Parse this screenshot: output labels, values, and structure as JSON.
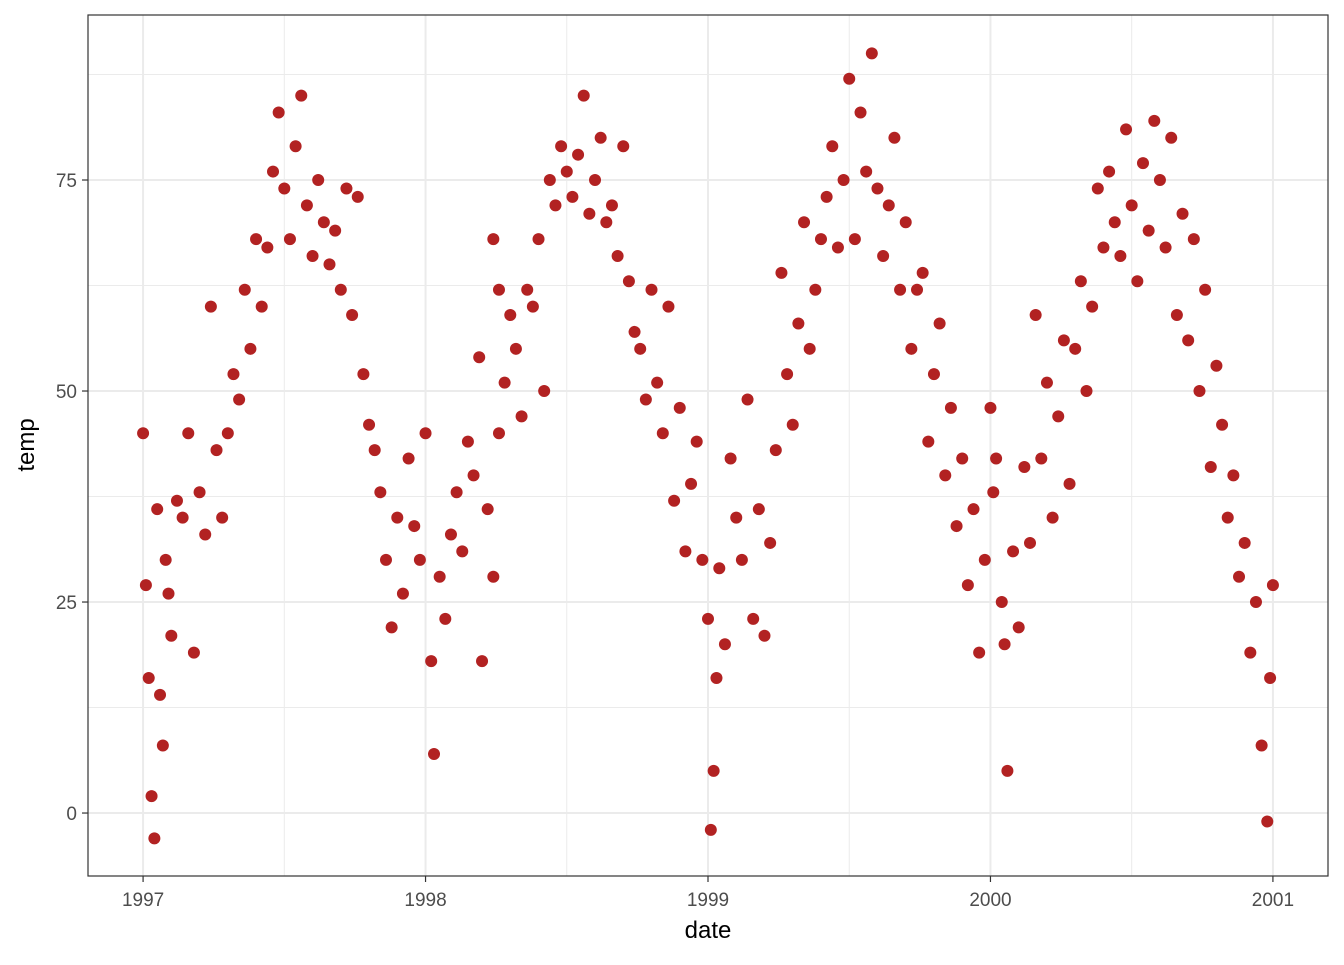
{
  "chart_data": {
    "type": "scatter",
    "x_label": "date",
    "y_label": "temp",
    "color": "#b22222",
    "grid": true,
    "xlim": [
      1996.805,
      2001.195
    ],
    "xticks": [
      1997,
      1998,
      1999,
      2000,
      2001
    ],
    "ylim": [
      -7.46,
      94.55
    ],
    "yticks": [
      0,
      25,
      50,
      75
    ],
    "x": [
      1997.0,
      1997.01,
      1997.02,
      1997.03,
      1997.04,
      1997.05,
      1997.06,
      1997.07,
      1997.08,
      1997.09,
      1997.1,
      1997.12,
      1997.14,
      1997.16,
      1997.18,
      1997.2,
      1997.22,
      1997.24,
      1997.26,
      1997.28,
      1997.3,
      1997.32,
      1997.34,
      1997.36,
      1997.38,
      1997.4,
      1997.42,
      1997.44,
      1997.46,
      1997.48,
      1997.5,
      1997.52,
      1997.54,
      1997.56,
      1997.58,
      1997.6,
      1997.62,
      1997.64,
      1997.66,
      1997.68,
      1997.7,
      1997.72,
      1997.74,
      1997.76,
      1997.78,
      1997.8,
      1997.82,
      1997.84,
      1997.86,
      1997.88,
      1997.9,
      1997.92,
      1997.94,
      1997.96,
      1997.98,
      1998.0,
      1998.02,
      1998.03,
      1998.05,
      1998.07,
      1998.09,
      1998.11,
      1998.13,
      1998.15,
      1998.17,
      1998.19,
      1998.2,
      1998.22,
      1998.24,
      1998.26,
      1998.24,
      1998.26,
      1998.28,
      1998.3,
      1998.32,
      1998.34,
      1998.36,
      1998.38,
      1998.4,
      1998.42,
      1998.44,
      1998.46,
      1998.48,
      1998.5,
      1998.52,
      1998.54,
      1998.56,
      1998.58,
      1998.6,
      1998.62,
      1998.64,
      1998.66,
      1998.68,
      1998.7,
      1998.72,
      1998.74,
      1998.76,
      1998.78,
      1998.8,
      1998.82,
      1998.84,
      1998.86,
      1998.88,
      1998.9,
      1998.92,
      1998.94,
      1998.96,
      1998.98,
      1999.0,
      1999.01,
      1999.02,
      1999.03,
      1999.04,
      1999.06,
      1999.08,
      1999.1,
      1999.12,
      1999.14,
      1999.16,
      1999.18,
      1999.2,
      1999.22,
      1999.24,
      1999.26,
      1999.28,
      1999.3,
      1999.32,
      1999.34,
      1999.36,
      1999.38,
      1999.4,
      1999.42,
      1999.44,
      1999.46,
      1999.48,
      1999.5,
      1999.52,
      1999.54,
      1999.56,
      1999.58,
      1999.6,
      1999.62,
      1999.64,
      1999.66,
      1999.68,
      1999.7,
      1999.72,
      1999.74,
      1999.76,
      1999.78,
      1999.8,
      1999.82,
      1999.84,
      1999.86,
      1999.88,
      1999.9,
      1999.92,
      1999.94,
      1999.96,
      1999.98,
      2000.0,
      2000.01,
      2000.02,
      2000.04,
      2000.05,
      2000.06,
      2000.08,
      2000.1,
      2000.12,
      2000.14,
      2000.16,
      2000.18,
      2000.2,
      2000.22,
      2000.24,
      2000.26,
      2000.28,
      2000.3,
      2000.32,
      2000.34,
      2000.36,
      2000.38,
      2000.4,
      2000.42,
      2000.44,
      2000.46,
      2000.48,
      2000.5,
      2000.52,
      2000.54,
      2000.56,
      2000.58,
      2000.6,
      2000.62,
      2000.64,
      2000.66,
      2000.68,
      2000.7,
      2000.72,
      2000.74,
      2000.76,
      2000.78,
      2000.8,
      2000.82,
      2000.84,
      2000.86,
      2000.88,
      2000.9,
      2000.92,
      2000.94,
      2000.96,
      2000.98,
      2000.99,
      2001.0
    ],
    "values": [
      45,
      27,
      16,
      2,
      -3,
      36,
      14,
      8,
      30,
      26,
      21,
      37,
      35,
      45,
      19,
      38,
      33,
      60,
      43,
      35,
      45,
      52,
      49,
      62,
      55,
      68,
      60,
      67,
      76,
      83,
      74,
      68,
      79,
      85,
      72,
      66,
      75,
      70,
      65,
      69,
      62,
      74,
      59,
      73,
      52,
      46,
      43,
      38,
      30,
      22,
      35,
      26,
      42,
      34,
      30,
      45,
      18,
      7,
      28,
      23,
      33,
      38,
      31,
      44,
      40,
      54,
      18,
      36,
      28,
      45,
      68,
      62,
      51,
      59,
      55,
      47,
      62,
      60,
      68,
      50,
      75,
      72,
      79,
      76,
      73,
      78,
      85,
      71,
      75,
      80,
      70,
      72,
      66,
      79,
      63,
      57,
      55,
      49,
      62,
      51,
      45,
      60,
      37,
      48,
      31,
      39,
      44,
      30,
      23,
      -2,
      5,
      16,
      29,
      20,
      42,
      35,
      30,
      49,
      23,
      36,
      21,
      32,
      43,
      64,
      52,
      46,
      58,
      70,
      55,
      62,
      68,
      73,
      79,
      67,
      75,
      87,
      68,
      83,
      76,
      90,
      74,
      66,
      72,
      80,
      62,
      70,
      55,
      62,
      64,
      44,
      52,
      58,
      40,
      48,
      34,
      42,
      27,
      36,
      19,
      30,
      48,
      38,
      42,
      25,
      20,
      5,
      31,
      22,
      41,
      32,
      59,
      42,
      51,
      35,
      47,
      56,
      39,
      55,
      63,
      50,
      60,
      74,
      67,
      76,
      70,
      66,
      81,
      72,
      63,
      77,
      69,
      82,
      75,
      67,
      80,
      59,
      71,
      56,
      68,
      50,
      62,
      41,
      53,
      46,
      35,
      40,
      28,
      32,
      19,
      25,
      8,
      -1,
      16,
      27
    ]
  }
}
